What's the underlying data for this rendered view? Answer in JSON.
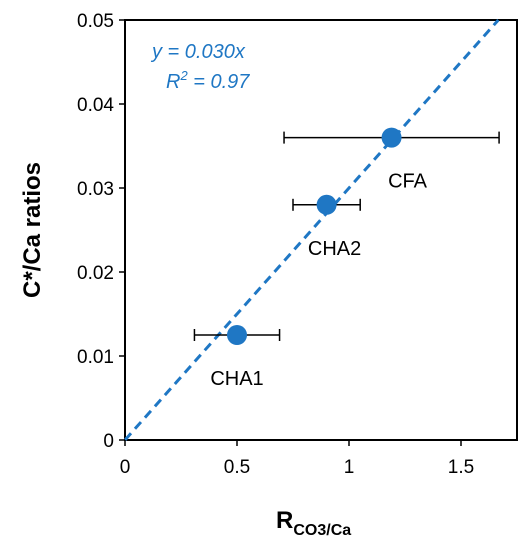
{
  "chart_data": {
    "type": "scatter",
    "title": "",
    "xlabel_main": "R",
    "xlabel_sub": "CO3/Ca",
    "ylabel": "C*/Ca ratios",
    "xlim": [
      0,
      1.75
    ],
    "ylim": [
      0,
      0.05
    ],
    "x_ticks": [
      "0",
      "0.5",
      "1",
      "1.5"
    ],
    "x_tick_values": [
      0,
      0.5,
      1,
      1.5
    ],
    "y_ticks": [
      "0",
      "0.01",
      "0.02",
      "0.03",
      "0.04",
      "0.05"
    ],
    "y_tick_values": [
      0,
      0.01,
      0.02,
      0.03,
      0.04,
      0.05
    ],
    "grid": false,
    "points": [
      {
        "label": "CHA1",
        "x": 0.5,
        "y": 0.0125,
        "xerr": 0.19
      },
      {
        "label": "CHA2",
        "x": 0.9,
        "y": 0.028,
        "xerr": 0.15
      },
      {
        "label": "CFA",
        "x": 1.19,
        "y": 0.036,
        "xerr": 0.48
      }
    ],
    "fit": {
      "slope": 0.03,
      "equation": "y = 0.030x",
      "r2_prefix": "R",
      "r2_sup": "2",
      "r2_value": " = 0.97"
    },
    "colors": {
      "point": "#1f77c4",
      "fit_line": "#1f77c4",
      "error_bar": "#000000"
    }
  }
}
